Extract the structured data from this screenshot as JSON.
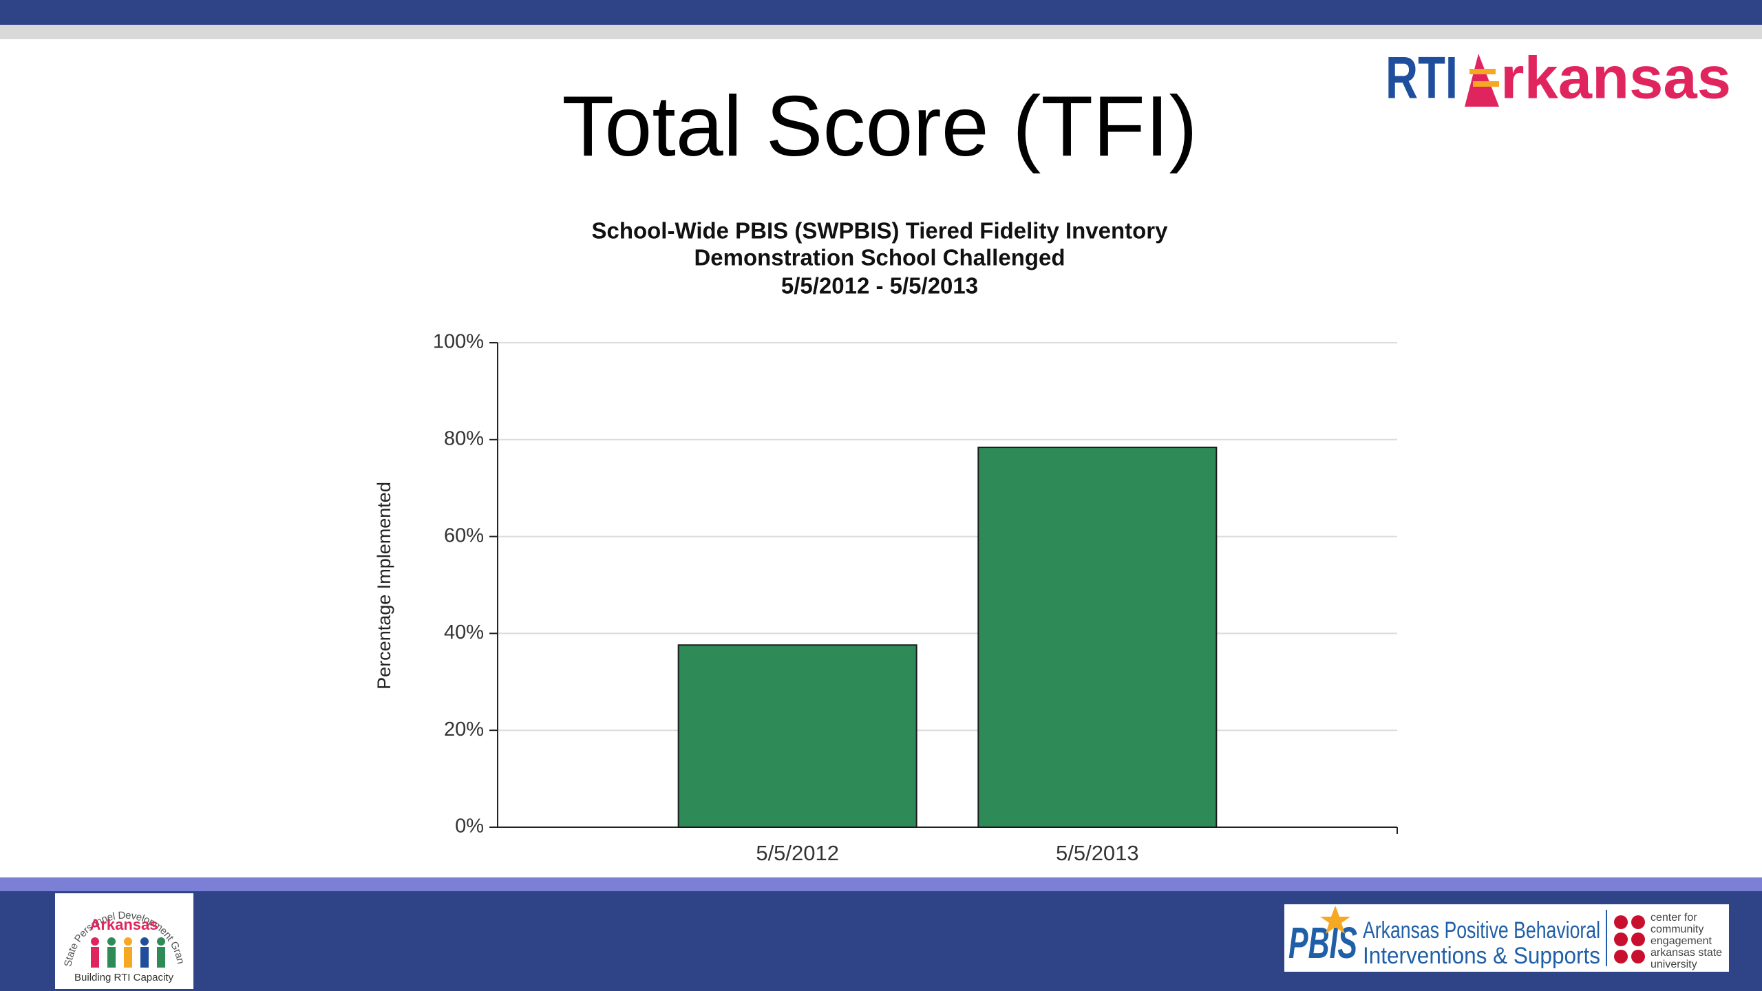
{
  "slide": {
    "title": "Total Score (TFI)",
    "logo_top": {
      "first": "RTI",
      "rest": "rkansas"
    },
    "logo_left": {
      "arc": "State Personnel Development Grant",
      "name": "Arkansas",
      "caption": "Building RTI Capacity"
    },
    "logo_right": {
      "mark": "PBIS",
      "line1": "Arkansas Positive Behavioral",
      "line2": "Interventions & Supports",
      "cce": [
        "center for",
        "community",
        "engagement",
        "arkansas state",
        "university"
      ]
    }
  },
  "chart_data": {
    "type": "bar",
    "title": "School-Wide PBIS (SWPBIS) Tiered Fidelity Inventory",
    "subtitle": "Demonstration School Challenged",
    "date_range": "5/5/2012 - 5/5/2013",
    "y_label": "Percentage Implemented",
    "categories": [
      "5/5/2012",
      "5/5/2013"
    ],
    "values": [
      37.6,
      78.4
    ],
    "color": "#2e8b57",
    "ylim": [
      0,
      100
    ],
    "yticks": [
      {
        "value": 0,
        "label": "0%"
      },
      {
        "value": 20,
        "label": "20%"
      },
      {
        "value": 40,
        "label": "40%"
      },
      {
        "value": 60,
        "label": "60%"
      },
      {
        "value": 80,
        "label": "80%"
      },
      {
        "value": 100,
        "label": "100%"
      }
    ],
    "grid": true
  }
}
